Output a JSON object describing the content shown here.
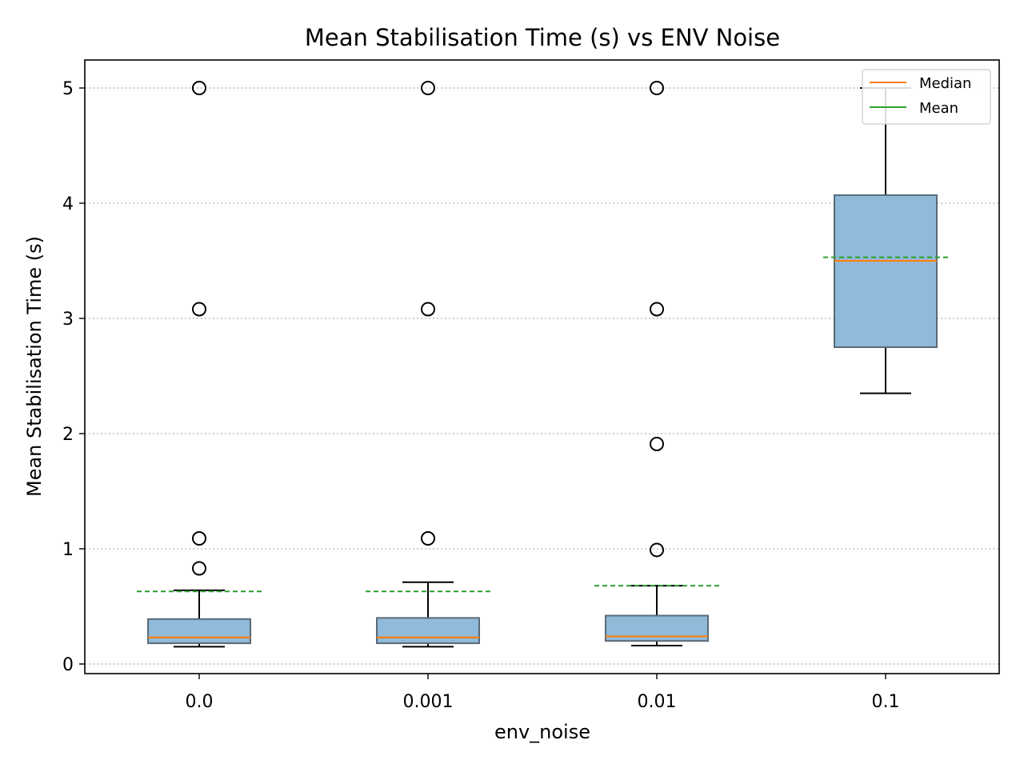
{
  "chart_data": {
    "type": "boxplot",
    "title": "Mean Stabilisation Time (s) vs ENV Noise",
    "xlabel": "env_noise",
    "ylabel": "Mean Stabilisation Time (s)",
    "categories": [
      "0.0",
      "0.001",
      "0.01",
      "0.1"
    ],
    "ylim": [
      -0.1,
      5.25
    ],
    "yticks": [
      0,
      1,
      2,
      3,
      4,
      5
    ],
    "grid": "y-dotted",
    "legend": {
      "position": "top-right",
      "entries": [
        {
          "label": "Median",
          "color": "#ff7f0e"
        },
        {
          "label": "Mean",
          "color": "#2ca02c"
        }
      ]
    },
    "boxes": [
      {
        "category": "0.0",
        "whisker_low": 0.15,
        "q1": 0.18,
        "median": 0.23,
        "q3": 0.39,
        "whisker_high": 0.64,
        "mean": 0.63,
        "outliers": [
          0.83,
          1.09,
          3.08,
          5.0
        ]
      },
      {
        "category": "0.001",
        "whisker_low": 0.15,
        "q1": 0.18,
        "median": 0.23,
        "q3": 0.4,
        "whisker_high": 0.71,
        "mean": 0.63,
        "outliers": [
          1.09,
          3.08,
          5.0
        ]
      },
      {
        "category": "0.01",
        "whisker_low": 0.16,
        "q1": 0.2,
        "median": 0.24,
        "q3": 0.42,
        "whisker_high": 0.68,
        "mean": 0.68,
        "outliers": [
          0.99,
          1.91,
          3.08,
          5.0
        ]
      },
      {
        "category": "0.1",
        "whisker_low": 2.35,
        "q1": 2.75,
        "median": 3.5,
        "q3": 4.07,
        "whisker_high": 5.0,
        "mean": 3.53,
        "outliers": []
      }
    ],
    "colors": {
      "box_fill": "#8fbad9",
      "box_edge": "#5a6a78",
      "median": "#ff7f0e",
      "mean": "#2ca02c",
      "grid": "#b0b0b0"
    }
  }
}
